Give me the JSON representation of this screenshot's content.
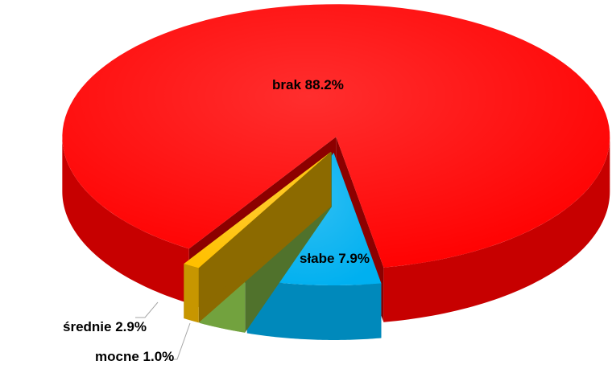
{
  "chart_data": {
    "type": "pie",
    "categories": [
      "brak",
      "słabe",
      "średnie",
      "mocne"
    ],
    "values": [
      88.2,
      7.9,
      2.9,
      1.0
    ],
    "value_labels": [
      "88.2%",
      "7.9%",
      "2.9%",
      "1.0%"
    ],
    "colors": [
      "#ff0000",
      "#00b0f0",
      "#92d050",
      "#ffc000"
    ]
  }
}
